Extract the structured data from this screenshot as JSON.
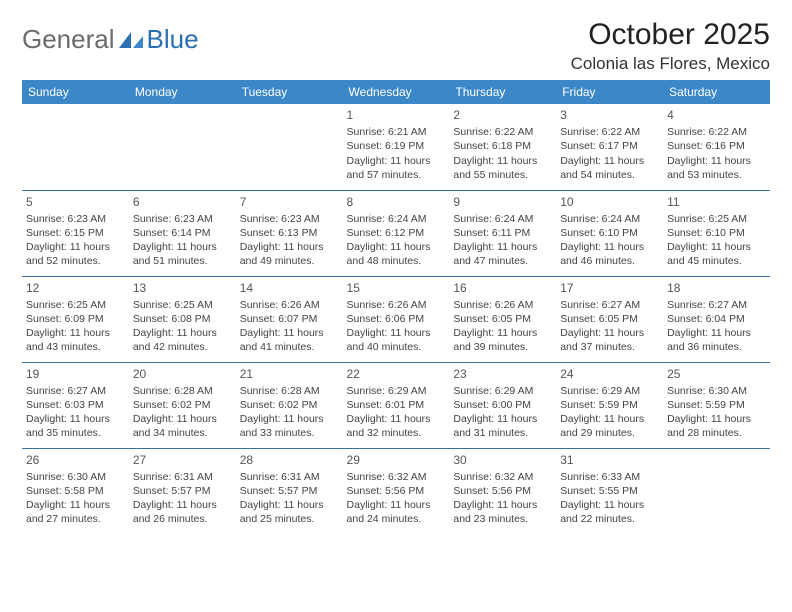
{
  "logo": {
    "part1": "General",
    "part2": "Blue"
  },
  "title": "October 2025",
  "location": "Colonia las Flores, Mexico",
  "header_color": "#3b87c8",
  "border_color": "#3b6fa0",
  "text_color": "#444444",
  "days_of_week": [
    "Sunday",
    "Monday",
    "Tuesday",
    "Wednesday",
    "Thursday",
    "Friday",
    "Saturday"
  ],
  "weeks": [
    [
      null,
      null,
      null,
      {
        "n": "1",
        "sr": "6:21 AM",
        "ss": "6:19 PM",
        "dl": "11 hours and 57 minutes."
      },
      {
        "n": "2",
        "sr": "6:22 AM",
        "ss": "6:18 PM",
        "dl": "11 hours and 55 minutes."
      },
      {
        "n": "3",
        "sr": "6:22 AM",
        "ss": "6:17 PM",
        "dl": "11 hours and 54 minutes."
      },
      {
        "n": "4",
        "sr": "6:22 AM",
        "ss": "6:16 PM",
        "dl": "11 hours and 53 minutes."
      }
    ],
    [
      {
        "n": "5",
        "sr": "6:23 AM",
        "ss": "6:15 PM",
        "dl": "11 hours and 52 minutes."
      },
      {
        "n": "6",
        "sr": "6:23 AM",
        "ss": "6:14 PM",
        "dl": "11 hours and 51 minutes."
      },
      {
        "n": "7",
        "sr": "6:23 AM",
        "ss": "6:13 PM",
        "dl": "11 hours and 49 minutes."
      },
      {
        "n": "8",
        "sr": "6:24 AM",
        "ss": "6:12 PM",
        "dl": "11 hours and 48 minutes."
      },
      {
        "n": "9",
        "sr": "6:24 AM",
        "ss": "6:11 PM",
        "dl": "11 hours and 47 minutes."
      },
      {
        "n": "10",
        "sr": "6:24 AM",
        "ss": "6:10 PM",
        "dl": "11 hours and 46 minutes."
      },
      {
        "n": "11",
        "sr": "6:25 AM",
        "ss": "6:10 PM",
        "dl": "11 hours and 45 minutes."
      }
    ],
    [
      {
        "n": "12",
        "sr": "6:25 AM",
        "ss": "6:09 PM",
        "dl": "11 hours and 43 minutes."
      },
      {
        "n": "13",
        "sr": "6:25 AM",
        "ss": "6:08 PM",
        "dl": "11 hours and 42 minutes."
      },
      {
        "n": "14",
        "sr": "6:26 AM",
        "ss": "6:07 PM",
        "dl": "11 hours and 41 minutes."
      },
      {
        "n": "15",
        "sr": "6:26 AM",
        "ss": "6:06 PM",
        "dl": "11 hours and 40 minutes."
      },
      {
        "n": "16",
        "sr": "6:26 AM",
        "ss": "6:05 PM",
        "dl": "11 hours and 39 minutes."
      },
      {
        "n": "17",
        "sr": "6:27 AM",
        "ss": "6:05 PM",
        "dl": "11 hours and 37 minutes."
      },
      {
        "n": "18",
        "sr": "6:27 AM",
        "ss": "6:04 PM",
        "dl": "11 hours and 36 minutes."
      }
    ],
    [
      {
        "n": "19",
        "sr": "6:27 AM",
        "ss": "6:03 PM",
        "dl": "11 hours and 35 minutes."
      },
      {
        "n": "20",
        "sr": "6:28 AM",
        "ss": "6:02 PM",
        "dl": "11 hours and 34 minutes."
      },
      {
        "n": "21",
        "sr": "6:28 AM",
        "ss": "6:02 PM",
        "dl": "11 hours and 33 minutes."
      },
      {
        "n": "22",
        "sr": "6:29 AM",
        "ss": "6:01 PM",
        "dl": "11 hours and 32 minutes."
      },
      {
        "n": "23",
        "sr": "6:29 AM",
        "ss": "6:00 PM",
        "dl": "11 hours and 31 minutes."
      },
      {
        "n": "24",
        "sr": "6:29 AM",
        "ss": "5:59 PM",
        "dl": "11 hours and 29 minutes."
      },
      {
        "n": "25",
        "sr": "6:30 AM",
        "ss": "5:59 PM",
        "dl": "11 hours and 28 minutes."
      }
    ],
    [
      {
        "n": "26",
        "sr": "6:30 AM",
        "ss": "5:58 PM",
        "dl": "11 hours and 27 minutes."
      },
      {
        "n": "27",
        "sr": "6:31 AM",
        "ss": "5:57 PM",
        "dl": "11 hours and 26 minutes."
      },
      {
        "n": "28",
        "sr": "6:31 AM",
        "ss": "5:57 PM",
        "dl": "11 hours and 25 minutes."
      },
      {
        "n": "29",
        "sr": "6:32 AM",
        "ss": "5:56 PM",
        "dl": "11 hours and 24 minutes."
      },
      {
        "n": "30",
        "sr": "6:32 AM",
        "ss": "5:56 PM",
        "dl": "11 hours and 23 minutes."
      },
      {
        "n": "31",
        "sr": "6:33 AM",
        "ss": "5:55 PM",
        "dl": "11 hours and 22 minutes."
      },
      null
    ]
  ],
  "labels": {
    "sunrise": "Sunrise:",
    "sunset": "Sunset:",
    "daylight": "Daylight:"
  }
}
